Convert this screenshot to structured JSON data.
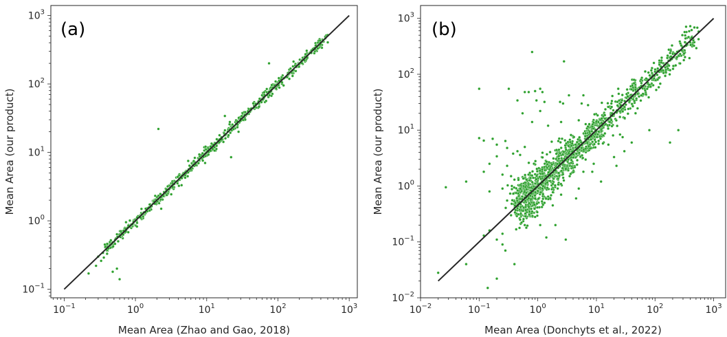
{
  "chart_data": [
    {
      "type": "scatter",
      "panel_label": "(a)",
      "xlabel": "Mean Area (Zhao and Gao, 2018)",
      "ylabel": "Mean Area (our product)",
      "xscale": "log",
      "yscale": "log",
      "xlim": [
        0.065,
        1300
      ],
      "ylim": [
        0.075,
        1400
      ],
      "x_ticks": [
        {
          "v": 0.1,
          "b": "10",
          "e": "−1"
        },
        {
          "v": 1,
          "b": "10",
          "e": "0"
        },
        {
          "v": 10,
          "b": "10",
          "e": "1"
        },
        {
          "v": 100,
          "b": "10",
          "e": "2"
        },
        {
          "v": 1000,
          "b": "10",
          "e": "3"
        }
      ],
      "y_ticks": [
        {
          "v": 0.1,
          "b": "10",
          "e": "−1"
        },
        {
          "v": 1,
          "b": "10",
          "e": "0"
        },
        {
          "v": 10,
          "b": "10",
          "e": "1"
        },
        {
          "v": 100,
          "b": "10",
          "e": "2"
        },
        {
          "v": 1000,
          "b": "10",
          "e": "3"
        }
      ],
      "reference_line": {
        "from": [
          0.1,
          0.1
        ],
        "to": [
          1000,
          1000
        ],
        "color": "#262626"
      },
      "marker_color": "#2ca02c",
      "grid": false,
      "legend": "none",
      "scatter": {
        "dense_range": [
          0.4,
          500
        ],
        "dense_spread_dex": 0.035,
        "dense_count": 700
      },
      "points": [
        [
          0.22,
          0.17
        ],
        [
          0.28,
          0.22
        ],
        [
          0.33,
          0.26
        ],
        [
          0.36,
          0.29
        ],
        [
          0.4,
          0.33
        ],
        [
          0.48,
          0.18
        ],
        [
          0.55,
          0.2
        ],
        [
          0.6,
          0.14
        ],
        [
          0.35,
          0.34
        ],
        [
          0.3,
          0.3
        ],
        [
          2.1,
          22
        ],
        [
          22,
          8.5
        ],
        [
          75,
          200
        ],
        [
          18,
          34
        ],
        [
          2.3,
          1.5
        ],
        [
          5.5,
          7.5
        ],
        [
          28,
          20
        ],
        [
          120,
          95
        ],
        [
          45,
          52
        ],
        [
          9.5,
          7
        ]
      ]
    },
    {
      "type": "scatter",
      "panel_label": "(b)",
      "xlabel": "Mean Area (Donchyts et al., 2022)",
      "ylabel": "Mean Area (our product)",
      "xscale": "log",
      "yscale": "log",
      "xlim": [
        0.01,
        1600
      ],
      "ylim": [
        0.01,
        1700
      ],
      "x_ticks": [
        {
          "v": 0.01,
          "b": "10",
          "e": "−2"
        },
        {
          "v": 0.1,
          "b": "10",
          "e": "−1"
        },
        {
          "v": 1,
          "b": "10",
          "e": "0"
        },
        {
          "v": 10,
          "b": "10",
          "e": "1"
        },
        {
          "v": 100,
          "b": "10",
          "e": "2"
        },
        {
          "v": 1000,
          "b": "10",
          "e": "3"
        }
      ],
      "y_ticks": [
        {
          "v": 0.01,
          "b": "10",
          "e": "−2"
        },
        {
          "v": 0.1,
          "b": "10",
          "e": "−1"
        },
        {
          "v": 1,
          "b": "10",
          "e": "0"
        },
        {
          "v": 10,
          "b": "10",
          "e": "1"
        },
        {
          "v": 100,
          "b": "10",
          "e": "2"
        },
        {
          "v": 1000,
          "b": "10",
          "e": "3"
        }
      ],
      "reference_line": {
        "from": [
          0.02,
          0.02
        ],
        "to": [
          1000,
          1000
        ],
        "color": "#262626"
      },
      "marker_color": "#2ca02c",
      "grid": false,
      "legend": "none",
      "scatter": {
        "dense_range": [
          0.5,
          500
        ],
        "dense_spread_dex": 0.12,
        "dense_count": 1500
      },
      "points": [
        [
          0.8,
          250
        ],
        [
          2.8,
          170
        ],
        [
          0.1,
          55
        ],
        [
          0.32,
          55
        ],
        [
          0.6,
          48
        ],
        [
          0.7,
          48
        ],
        [
          0.9,
          50
        ],
        [
          1.1,
          55
        ],
        [
          1.2,
          48
        ],
        [
          3.4,
          42
        ],
        [
          6.0,
          42
        ],
        [
          0.45,
          34
        ],
        [
          0.95,
          34
        ],
        [
          1.3,
          32
        ],
        [
          2.4,
          32
        ],
        [
          2.7,
          30
        ],
        [
          5.6,
          30
        ],
        [
          7.2,
          28
        ],
        [
          18,
          30
        ],
        [
          0.55,
          20
        ],
        [
          1.1,
          22
        ],
        [
          0.8,
          14
        ],
        [
          1.5,
          12
        ],
        [
          2.5,
          14
        ],
        [
          5.0,
          15
        ],
        [
          0.1,
          7.2
        ],
        [
          0.12,
          6.5
        ],
        [
          0.17,
          7
        ],
        [
          0.2,
          5.5
        ],
        [
          0.28,
          6.4
        ],
        [
          0.3,
          4.8
        ],
        [
          0.45,
          4.2
        ],
        [
          0.6,
          5
        ],
        [
          0.38,
          3.8
        ],
        [
          0.5,
          3.6
        ],
        [
          0.2,
          3.4
        ],
        [
          0.15,
          2.5
        ],
        [
          0.3,
          2.3
        ],
        [
          0.12,
          1.8
        ],
        [
          0.25,
          1.6
        ],
        [
          0.35,
          1.5
        ],
        [
          0.4,
          1.3
        ],
        [
          0.027,
          0.95
        ],
        [
          0.06,
          1.2
        ],
        [
          0.15,
          0.8
        ],
        [
          0.25,
          0.9
        ],
        [
          0.3,
          0.55
        ],
        [
          0.45,
          0.4
        ],
        [
          0.5,
          0.25
        ],
        [
          0.35,
          0.3
        ],
        [
          0.6,
          0.2
        ],
        [
          0.9,
          0.28
        ],
        [
          1.1,
          0.2
        ],
        [
          1.4,
          0.12
        ],
        [
          2.0,
          0.2
        ],
        [
          3.0,
          0.11
        ],
        [
          0.12,
          0.13
        ],
        [
          0.15,
          0.16
        ],
        [
          0.2,
          0.11
        ],
        [
          0.25,
          0.09
        ],
        [
          0.28,
          0.07
        ],
        [
          0.14,
          0.015
        ],
        [
          0.2,
          0.022
        ],
        [
          0.4,
          0.04
        ],
        [
          0.06,
          0.04
        ],
        [
          0.02,
          0.028
        ],
        [
          0.25,
          0.14
        ],
        [
          0.7,
          0.6
        ],
        [
          0.8,
          0.35
        ],
        [
          12,
          1.2
        ],
        [
          8.5,
          1.8
        ],
        [
          22,
          2.3
        ],
        [
          30,
          4.2
        ],
        [
          40,
          6.0
        ],
        [
          80,
          10
        ],
        [
          180,
          6
        ],
        [
          250,
          10
        ],
        [
          28,
          7.5
        ],
        [
          16,
          5.5
        ],
        [
          20,
          3.3
        ],
        [
          9.0,
          2.5
        ],
        [
          6.0,
          1.8
        ],
        [
          5.0,
          0.9
        ],
        [
          3.5,
          1.5
        ],
        [
          4.5,
          0.6
        ],
        [
          2.5,
          0.7
        ],
        [
          1.8,
          0.45
        ],
        [
          1.3,
          0.5
        ],
        [
          0.9,
          0.6
        ],
        [
          1.2,
          0.9
        ],
        [
          14,
          16
        ],
        [
          35,
          24
        ],
        [
          70,
          44
        ]
      ]
    }
  ]
}
